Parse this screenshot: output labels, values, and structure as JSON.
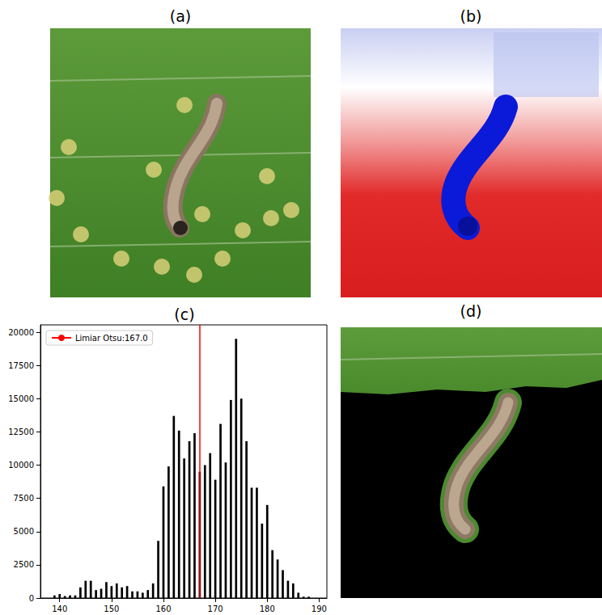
{
  "chart_data": {
    "type": "bar",
    "title": "(c)",
    "x": [
      139,
      140,
      141,
      142,
      143,
      144,
      145,
      146,
      147,
      148,
      149,
      150,
      151,
      152,
      153,
      154,
      155,
      156,
      157,
      158,
      159,
      160,
      161,
      162,
      163,
      164,
      165,
      166,
      167,
      168,
      169,
      170,
      171,
      172,
      173,
      174,
      175,
      176,
      177,
      178,
      179,
      180,
      181,
      182,
      183,
      184,
      185,
      186,
      187,
      188
    ],
    "values": [
      200,
      300,
      150,
      200,
      200,
      800,
      1300,
      1300,
      600,
      700,
      1200,
      900,
      1100,
      800,
      900,
      500,
      500,
      400,
      600,
      1100,
      4300,
      8400,
      9900,
      13700,
      12600,
      10500,
      11800,
      12400,
      9500,
      10000,
      10900,
      8900,
      13100,
      10200,
      14900,
      19500,
      15000,
      11800,
      8300,
      8300,
      5600,
      7000,
      3600,
      2900,
      2100,
      1300,
      1100,
      400,
      100,
      100
    ],
    "color": "#000000",
    "xlim": [
      136.3,
      191.5
    ],
    "xticks": [
      140,
      150,
      160,
      170,
      180,
      190
    ],
    "ylim": [
      0,
      20550
    ],
    "yticks": [
      0,
      2500,
      5000,
      7500,
      10000,
      12500,
      15000,
      17500,
      20000
    ],
    "grid": false,
    "legend": "upper left",
    "threshold": {
      "value": 167.0,
      "label": "Limiar Otsu:167.0",
      "color": "#ff0000"
    }
  },
  "image_panels": [
    {
      "title": "(a)"
    },
    {
      "title": "(b)"
    },
    {
      "title": "(d)"
    }
  ]
}
